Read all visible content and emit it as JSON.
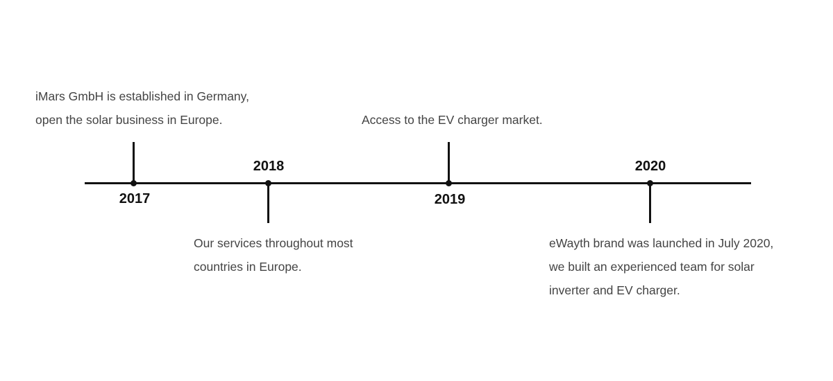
{
  "milestones": [
    {
      "year": "2017",
      "lines": [
        "iMars GmbH is established in Germany,",
        "open the solar business in Europe."
      ]
    },
    {
      "year": "2018",
      "lines": [
        "Our services throughout most",
        "countries in Europe."
      ]
    },
    {
      "year": "2019",
      "lines": [
        "Access to the EV charger market."
      ]
    },
    {
      "year": "2020",
      "lines": [
        "eWayth brand was launched in July 2020,",
        "we built an experienced team for solar",
        "inverter and EV charger."
      ]
    }
  ],
  "colors": {
    "line": "#111111",
    "year_text": "#111111",
    "description_text": "#444444"
  }
}
